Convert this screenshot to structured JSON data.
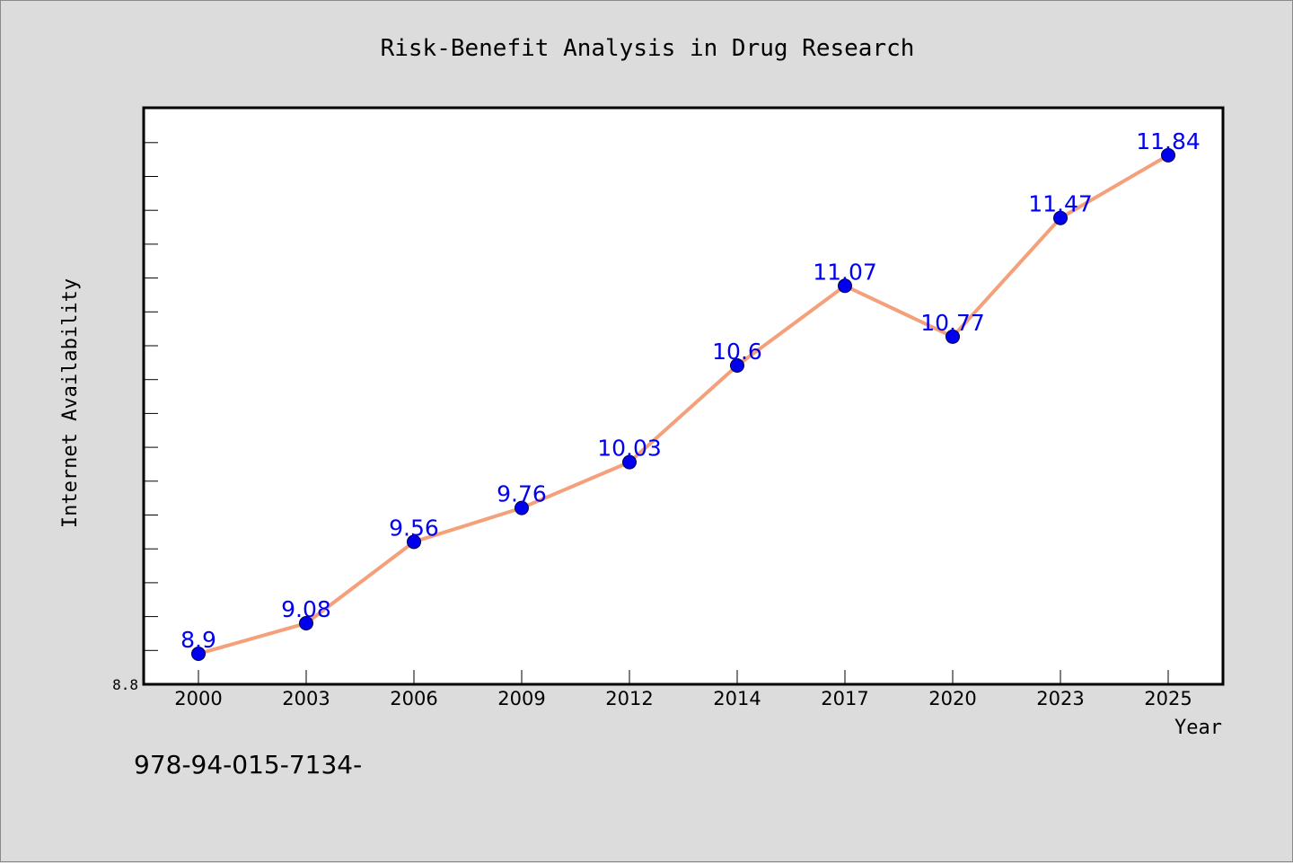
{
  "chart_data": {
    "type": "line",
    "title": "Risk-Benefit Analysis in Drug Research",
    "xlabel": "Year",
    "ylabel": "Internet Availability",
    "categories": [
      "2000",
      "2003",
      "2006",
      "2009",
      "2012",
      "2014",
      "2017",
      "2020",
      "2023",
      "2025"
    ],
    "values": [
      8.9,
      9.08,
      9.56,
      9.76,
      10.03,
      10.6,
      11.07,
      10.77,
      11.47,
      11.84
    ],
    "data_labels": [
      "8.9",
      "9.08",
      "9.56",
      "9.76",
      "10.03",
      "10.6",
      "11.07",
      "10.77",
      "11.47",
      "11.84"
    ],
    "ylim": [
      8.72,
      12.12
    ],
    "yticks": [
      8.8
    ],
    "ytick_labels": [
      "8.8"
    ],
    "grid": false,
    "legend": "none",
    "colors": {
      "line": "#f4a07a",
      "marker": "#0000ee",
      "label": "#0000ee",
      "background": "#dcdcdc",
      "plot_background": "#ffffff"
    }
  },
  "footer": {
    "code": "978-94-015-7134-"
  }
}
